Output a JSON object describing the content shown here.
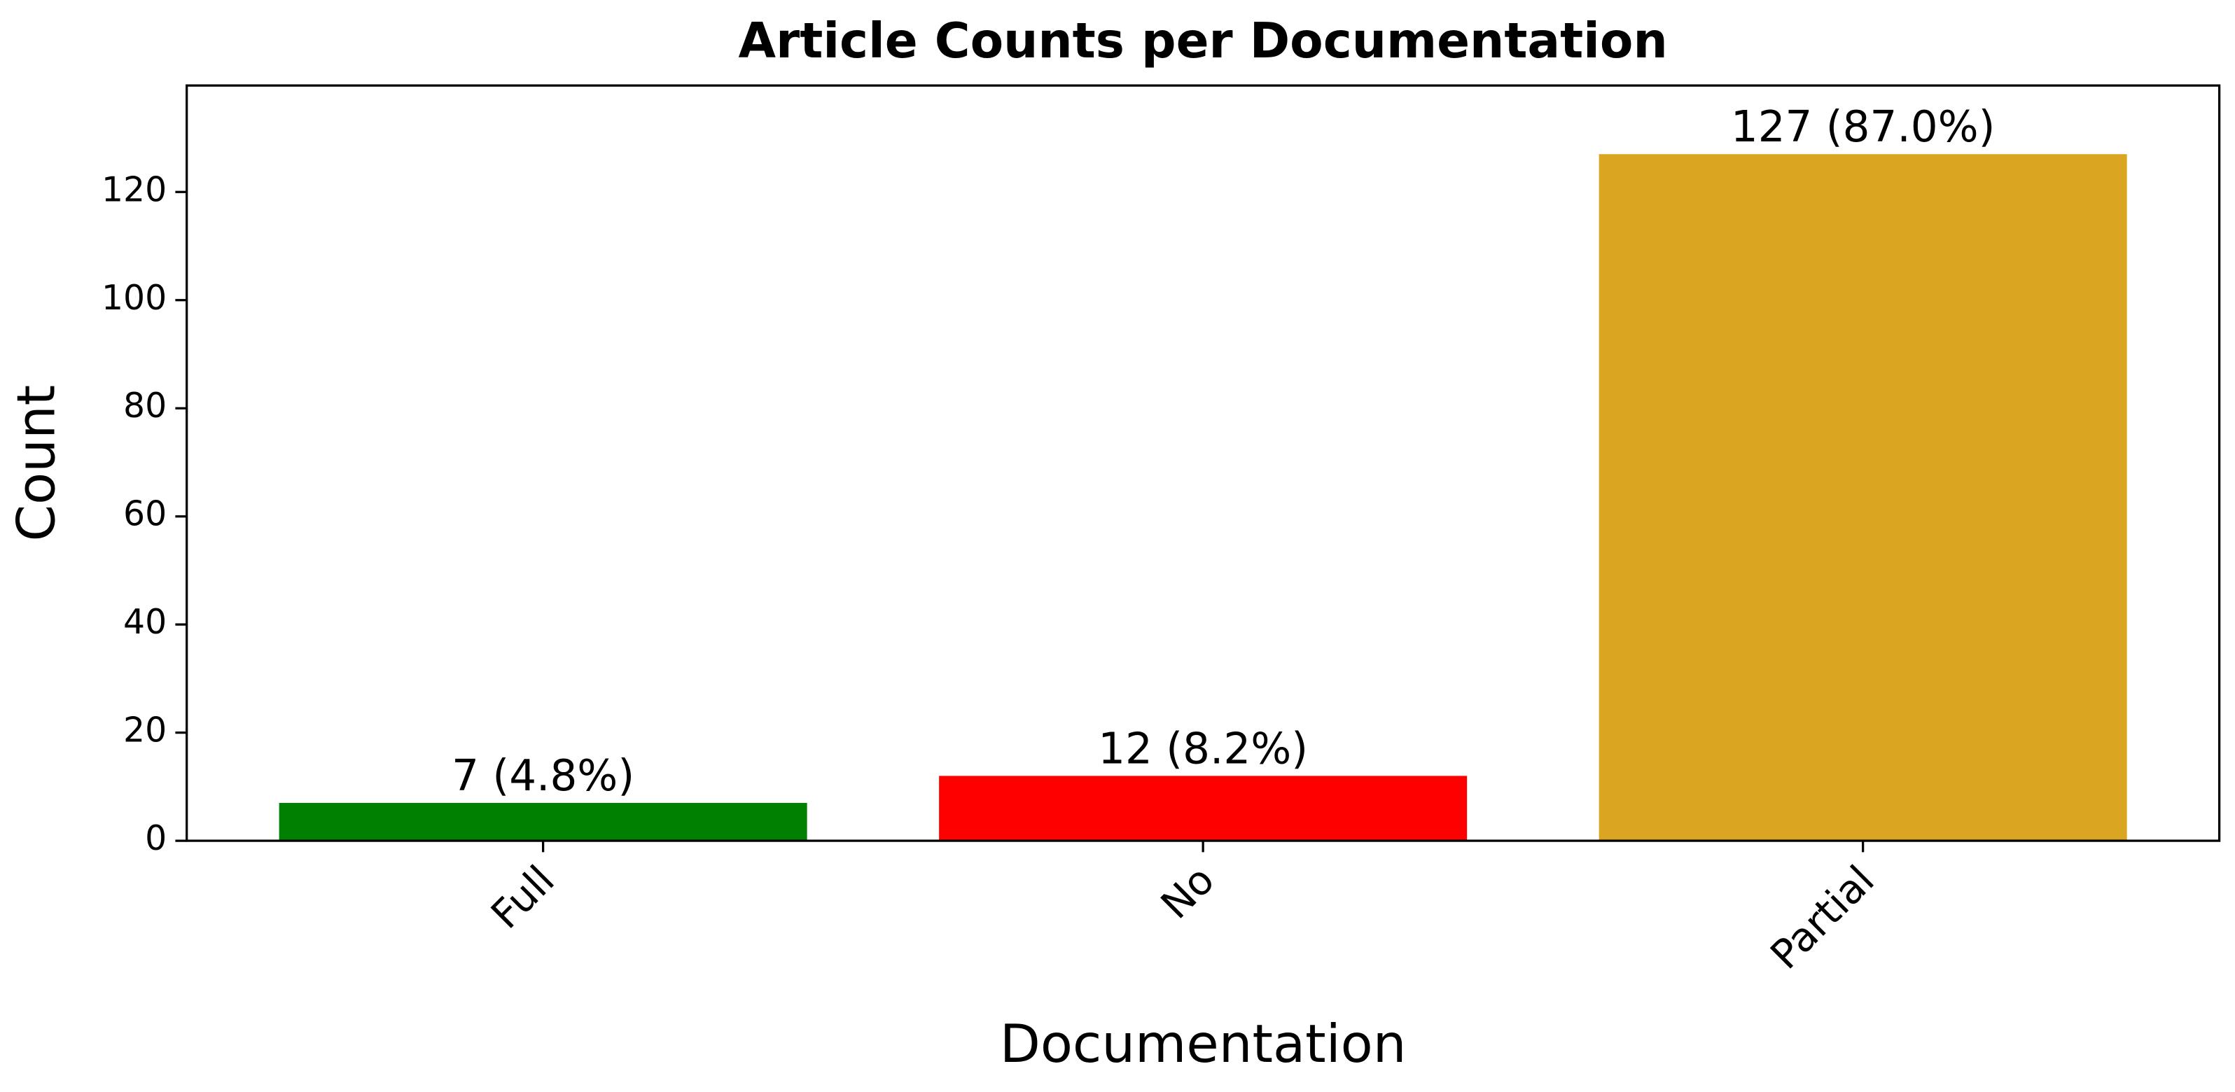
{
  "chart_data": {
    "type": "bar",
    "title": "Article Counts per Documentation",
    "x_label": "Documentation",
    "y_label": "Count",
    "categories": [
      "Full",
      "No",
      "Partial"
    ],
    "values": [
      7,
      12,
      127
    ],
    "value_labels": [
      "7 (4.8%)",
      "12 (8.2%)",
      "127 (87.0%)"
    ],
    "colors": [
      "#008000",
      "#ff0000",
      "#daa520"
    ],
    "ylim": [
      0,
      139.7
    ],
    "yticks": [
      0,
      20,
      40,
      60,
      80,
      100,
      120
    ],
    "grid": false
  }
}
